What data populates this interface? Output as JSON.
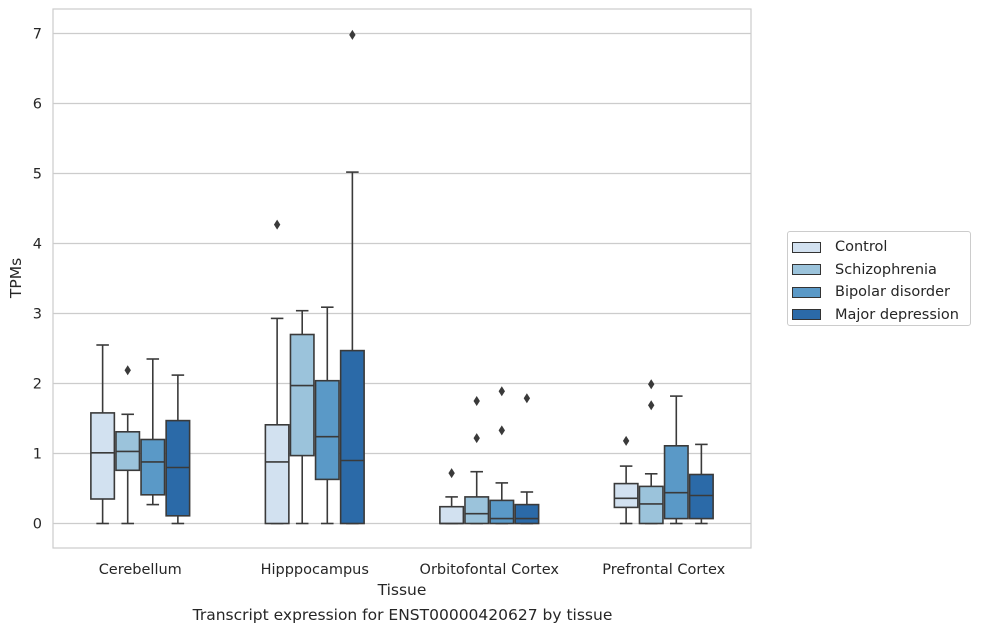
{
  "chart_data": {
    "type": "box",
    "xlabel": "Tissue",
    "ylabel": "TPMs",
    "caption": "Transcript expression for ENST00000420627 by tissue",
    "ylim": [
      -0.35,
      7.35
    ],
    "yticks": [
      0,
      1,
      2,
      3,
      4,
      5,
      6,
      7
    ],
    "grid": "horizontal",
    "legend_position": "right",
    "categories": [
      "Cerebellum",
      "Hipppocampus",
      "Orbitofontal Cortex",
      "Prefrontal Cortex"
    ],
    "series": [
      {
        "name": "Control",
        "color": "#d2e1f0",
        "boxes": [
          {
            "whisker_low": 0,
            "q1": 0.35,
            "median": 1.01,
            "q3": 1.58,
            "whisker_high": 2.55,
            "outliers": []
          },
          {
            "whisker_low": 0,
            "q1": 0,
            "median": 0.88,
            "q3": 1.41,
            "whisker_high": 2.93,
            "outliers": [
              4.27
            ]
          },
          {
            "whisker_low": 0,
            "q1": 0,
            "median": 0,
            "q3": 0.24,
            "whisker_high": 0.38,
            "outliers": [
              0.72
            ]
          },
          {
            "whisker_low": 0,
            "q1": 0.23,
            "median": 0.36,
            "q3": 0.57,
            "whisker_high": 0.82,
            "outliers": [
              1.18
            ]
          }
        ]
      },
      {
        "name": "Schizophrenia",
        "color": "#9bc3db",
        "boxes": [
          {
            "whisker_low": 0,
            "q1": 0.76,
            "median": 1.03,
            "q3": 1.31,
            "whisker_high": 1.56,
            "outliers": [
              2.19
            ]
          },
          {
            "whisker_low": 0,
            "q1": 0.97,
            "median": 1.97,
            "q3": 2.7,
            "whisker_high": 3.04,
            "outliers": []
          },
          {
            "whisker_low": 0,
            "q1": 0,
            "median": 0.14,
            "q3": 0.38,
            "whisker_high": 0.74,
            "outliers": [
              1.22,
              1.75
            ]
          },
          {
            "whisker_low": 0,
            "q1": 0,
            "median": 0.28,
            "q3": 0.53,
            "whisker_high": 0.71,
            "outliers": [
              1.69,
              1.99
            ]
          }
        ]
      },
      {
        "name": "Bipolar disorder",
        "color": "#5a99c7",
        "boxes": [
          {
            "whisker_low": 0.27,
            "q1": 0.41,
            "median": 0.88,
            "q3": 1.2,
            "whisker_high": 2.35,
            "outliers": []
          },
          {
            "whisker_low": 0,
            "q1": 0.63,
            "median": 1.24,
            "q3": 2.04,
            "whisker_high": 3.09,
            "outliers": []
          },
          {
            "whisker_low": 0,
            "q1": 0,
            "median": 0.07,
            "q3": 0.33,
            "whisker_high": 0.58,
            "outliers": [
              1.33,
              1.89
            ]
          },
          {
            "whisker_low": 0,
            "q1": 0.07,
            "median": 0.44,
            "q3": 1.11,
            "whisker_high": 1.82,
            "outliers": []
          }
        ]
      },
      {
        "name": "Major depression",
        "color": "#2b6aa8",
        "boxes": [
          {
            "whisker_low": 0,
            "q1": 0.11,
            "median": 0.8,
            "q3": 1.47,
            "whisker_high": 2.12,
            "outliers": []
          },
          {
            "whisker_low": 0,
            "q1": 0,
            "median": 0.9,
            "q3": 2.47,
            "whisker_high": 5.02,
            "outliers": [
              6.98
            ]
          },
          {
            "whisker_low": 0,
            "q1": 0,
            "median": 0.07,
            "q3": 0.27,
            "whisker_high": 0.45,
            "outliers": [
              1.79
            ]
          },
          {
            "whisker_low": 0,
            "q1": 0.07,
            "median": 0.4,
            "q3": 0.7,
            "whisker_high": 1.13,
            "outliers": []
          }
        ]
      }
    ]
  }
}
